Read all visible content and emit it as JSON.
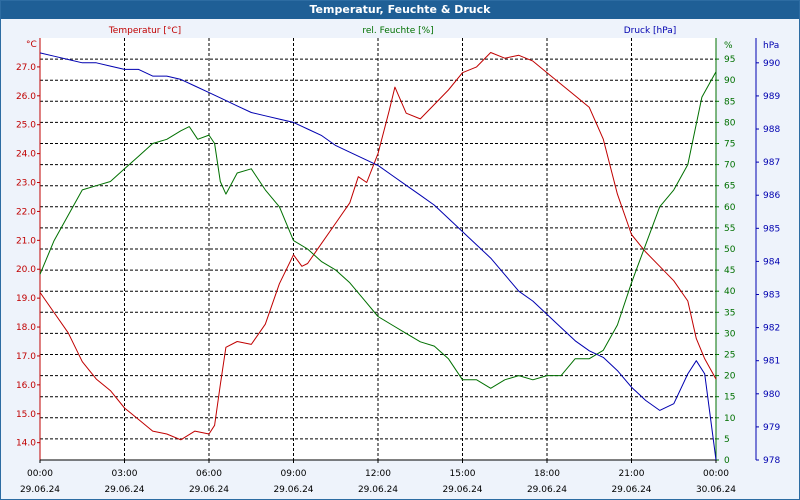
{
  "window": {
    "title": "Temperatur, Feuchte & Druck"
  },
  "chart_data": {
    "type": "line",
    "title": "Temperatur, Feuchte & Druck",
    "colors": {
      "temperature": "#c00000",
      "humidity": "#007000",
      "pressure": "#0000b0",
      "grid": "#000000"
    },
    "x_ticks": [
      {
        "time": "00:00",
        "date": "29.06.24"
      },
      {
        "time": "03:00",
        "date": "29.06.24"
      },
      {
        "time": "06:00",
        "date": "29.06.24"
      },
      {
        "time": "09:00",
        "date": "29.06.24"
      },
      {
        "time": "12:00",
        "date": "29.06.24"
      },
      {
        "time": "15:00",
        "date": "29.06.24"
      },
      {
        "time": "18:00",
        "date": "29.06.24"
      },
      {
        "time": "21:00",
        "date": "29.06.24"
      },
      {
        "time": "00:00",
        "date": "30.06.24"
      }
    ],
    "xlim": [
      0,
      24
    ],
    "axes": {
      "temperature": {
        "label": "Temperatur [°C]",
        "unit": "°C",
        "ylim": [
          13.4,
          28.0
        ],
        "ticks": [
          "14.0",
          "15.0",
          "16.0",
          "17.0",
          "18.0",
          "19.0",
          "20.0",
          "21.0",
          "22.0",
          "23.0",
          "24.0",
          "25.0",
          "26.0",
          "27.0"
        ]
      },
      "humidity": {
        "label": "rel. Feuchte [%]",
        "unit": "%",
        "ylim": [
          0,
          100
        ],
        "ticks": [
          "0",
          "5",
          "10",
          "15",
          "20",
          "25",
          "30",
          "35",
          "40",
          "45",
          "50",
          "55",
          "60",
          "65",
          "70",
          "75",
          "80",
          "85",
          "90",
          "95"
        ]
      },
      "pressure": {
        "label": "Druck [hPa]",
        "unit": "hPa",
        "ylim": [
          978,
          990.75
        ],
        "ticks": [
          "978",
          "979",
          "980",
          "981",
          "982",
          "983",
          "984",
          "985",
          "986",
          "987",
          "988",
          "989",
          "990"
        ]
      }
    },
    "series": [
      {
        "name": "Temperatur [°C]",
        "axis": "temperature",
        "points": [
          [
            0,
            19.2
          ],
          [
            0.5,
            18.5
          ],
          [
            1,
            17.8
          ],
          [
            1.5,
            16.8
          ],
          [
            2,
            16.2
          ],
          [
            2.5,
            15.8
          ],
          [
            3,
            15.2
          ],
          [
            3.5,
            14.8
          ],
          [
            4,
            14.4
          ],
          [
            4.5,
            14.3
          ],
          [
            5,
            14.1
          ],
          [
            5.5,
            14.4
          ],
          [
            6,
            14.3
          ],
          [
            6.2,
            14.6
          ],
          [
            6.4,
            16.0
          ],
          [
            6.6,
            17.3
          ],
          [
            7,
            17.5
          ],
          [
            7.5,
            17.4
          ],
          [
            8,
            18.1
          ],
          [
            8.5,
            19.5
          ],
          [
            9,
            20.5
          ],
          [
            9.3,
            20.1
          ],
          [
            9.5,
            20.2
          ],
          [
            10,
            20.9
          ],
          [
            10.5,
            21.6
          ],
          [
            11,
            22.3
          ],
          [
            11.3,
            23.2
          ],
          [
            11.6,
            23.0
          ],
          [
            12,
            24.0
          ],
          [
            12.4,
            25.5
          ],
          [
            12.6,
            26.3
          ],
          [
            13,
            25.4
          ],
          [
            13.5,
            25.2
          ],
          [
            14,
            25.7
          ],
          [
            14.5,
            26.2
          ],
          [
            15,
            26.8
          ],
          [
            15.5,
            27.0
          ],
          [
            16,
            27.5
          ],
          [
            16.5,
            27.3
          ],
          [
            17,
            27.4
          ],
          [
            17.5,
            27.2
          ],
          [
            18,
            26.8
          ],
          [
            18.5,
            26.4
          ],
          [
            19,
            26.0
          ],
          [
            19.5,
            25.6
          ],
          [
            20,
            24.5
          ],
          [
            20.5,
            22.6
          ],
          [
            21,
            21.2
          ],
          [
            21.5,
            20.6
          ],
          [
            22,
            20.1
          ],
          [
            22.5,
            19.6
          ],
          [
            23,
            18.9
          ],
          [
            23.3,
            17.6
          ],
          [
            23.6,
            16.9
          ],
          [
            24,
            16.2
          ]
        ]
      },
      {
        "name": "rel. Feuchte [%]",
        "axis": "humidity",
        "points": [
          [
            0,
            44
          ],
          [
            0.5,
            52
          ],
          [
            1,
            58
          ],
          [
            1.5,
            64
          ],
          [
            2,
            65
          ],
          [
            2.5,
            66
          ],
          [
            3,
            69
          ],
          [
            3.5,
            72
          ],
          [
            4,
            75
          ],
          [
            4.5,
            76
          ],
          [
            5,
            78
          ],
          [
            5.3,
            79
          ],
          [
            5.6,
            76
          ],
          [
            6,
            77
          ],
          [
            6.2,
            75
          ],
          [
            6.4,
            66
          ],
          [
            6.6,
            63
          ],
          [
            7,
            68
          ],
          [
            7.5,
            69
          ],
          [
            8,
            64
          ],
          [
            8.5,
            60
          ],
          [
            9,
            52
          ],
          [
            9.5,
            50
          ],
          [
            10,
            47
          ],
          [
            10.5,
            45
          ],
          [
            11,
            42
          ],
          [
            11.5,
            38
          ],
          [
            12,
            34
          ],
          [
            12.5,
            32
          ],
          [
            13,
            30
          ],
          [
            13.5,
            28
          ],
          [
            14,
            27
          ],
          [
            14.5,
            24
          ],
          [
            15,
            19
          ],
          [
            15.5,
            19
          ],
          [
            16,
            17
          ],
          [
            16.5,
            19
          ],
          [
            17,
            20
          ],
          [
            17.5,
            19
          ],
          [
            18,
            20
          ],
          [
            18.5,
            20
          ],
          [
            19,
            24
          ],
          [
            19.5,
            24
          ],
          [
            20,
            26
          ],
          [
            20.5,
            32
          ],
          [
            21,
            42
          ],
          [
            21.5,
            51
          ],
          [
            22,
            60
          ],
          [
            22.5,
            64
          ],
          [
            23,
            70
          ],
          [
            23.5,
            86
          ],
          [
            24,
            92
          ]
        ]
      },
      {
        "name": "Druck [hPa]",
        "axis": "pressure",
        "points": [
          [
            0,
            990.3
          ],
          [
            0.5,
            990.2
          ],
          [
            1,
            990.1
          ],
          [
            1.5,
            990.0
          ],
          [
            2,
            990.0
          ],
          [
            2.5,
            989.9
          ],
          [
            3,
            989.8
          ],
          [
            3.5,
            989.8
          ],
          [
            4,
            989.6
          ],
          [
            4.5,
            989.6
          ],
          [
            5,
            989.5
          ],
          [
            5.5,
            989.3
          ],
          [
            6,
            989.1
          ],
          [
            6.5,
            988.9
          ],
          [
            7,
            988.7
          ],
          [
            7.5,
            988.5
          ],
          [
            8,
            988.4
          ],
          [
            8.5,
            988.3
          ],
          [
            9,
            988.2
          ],
          [
            9.5,
            988.0
          ],
          [
            10,
            987.8
          ],
          [
            10.5,
            987.5
          ],
          [
            11,
            987.3
          ],
          [
            11.5,
            987.1
          ],
          [
            12,
            986.9
          ],
          [
            12.5,
            986.6
          ],
          [
            13,
            986.3
          ],
          [
            13.5,
            986.0
          ],
          [
            14,
            985.7
          ],
          [
            14.5,
            985.3
          ],
          [
            15,
            984.9
          ],
          [
            15.5,
            984.5
          ],
          [
            16,
            984.1
          ],
          [
            16.5,
            983.6
          ],
          [
            17,
            983.1
          ],
          [
            17.5,
            982.8
          ],
          [
            18,
            982.4
          ],
          [
            18.5,
            982.0
          ],
          [
            19,
            981.6
          ],
          [
            19.5,
            981.3
          ],
          [
            20,
            981.1
          ],
          [
            20.5,
            980.7
          ],
          [
            21,
            980.2
          ],
          [
            21.5,
            979.8
          ],
          [
            22,
            979.5
          ],
          [
            22.5,
            979.7
          ],
          [
            23,
            980.6
          ],
          [
            23.3,
            981.0
          ],
          [
            23.6,
            980.6
          ],
          [
            24,
            978.0
          ]
        ]
      }
    ]
  }
}
